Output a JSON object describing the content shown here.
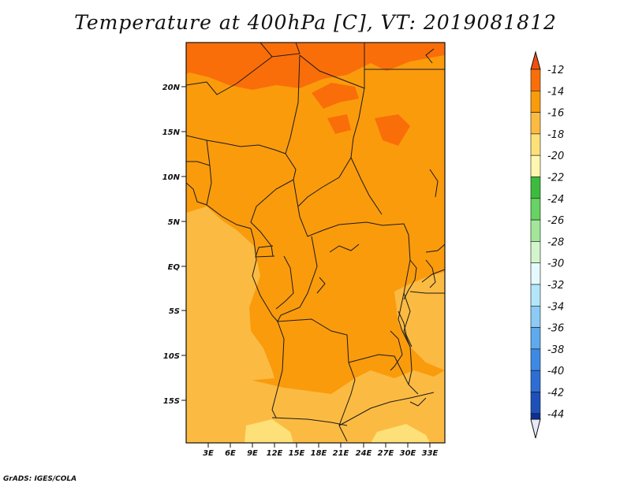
{
  "title": "Temperature at 400hPa [C], VT: 2019081812",
  "footer": "GrADS: IGES/COLA",
  "map": {
    "lat_ticks": [
      "20N",
      "15N",
      "10N",
      "5N",
      "EQ",
      "5S",
      "10S",
      "15S"
    ],
    "lon_ticks": [
      "3E",
      "6E",
      "9E",
      "12E",
      "15E",
      "18E",
      "21E",
      "24E",
      "27E",
      "30E",
      "33E"
    ]
  },
  "colorbar": {
    "levels": [
      "-12",
      "-14",
      "-16",
      "-18",
      "-20",
      "-22",
      "-24",
      "-26",
      "-28",
      "-30",
      "-32",
      "-34",
      "-36",
      "-38",
      "-40",
      "-42",
      "-44"
    ],
    "colors": [
      "#f0500c",
      "#fa6e0a",
      "#fa9b0c",
      "#fbbb43",
      "#fee079",
      "#fff7b0",
      "#3dbb3d",
      "#67d363",
      "#a3e69b",
      "#d3f4cc",
      "#e4fafe",
      "#b4e6fa",
      "#8ccbf5",
      "#5fa9ee",
      "#3d8ae3",
      "#2d6ed4",
      "#1d50b8",
      "#0e2f92",
      "#e8e8fb"
    ]
  },
  "fill_colors": {
    "warm": "#fa6e0a",
    "main": "#fa9b0c",
    "light": "#fbbb43",
    "pale": "#fee079",
    "border": "#1a1a1a"
  }
}
